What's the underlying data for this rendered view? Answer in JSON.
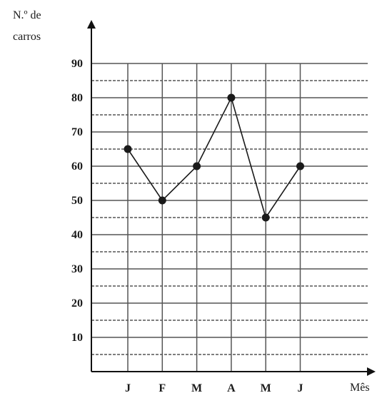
{
  "chart_data": {
    "type": "line",
    "ylabel_lines": [
      "N.º de",
      "carros"
    ],
    "xlabel": "Mês",
    "categories": [
      "J",
      "F",
      "M",
      "A",
      "M",
      "J"
    ],
    "values": [
      65,
      50,
      60,
      80,
      45,
      60
    ],
    "ylim": [
      0,
      90
    ],
    "y_ticks": [
      10,
      20,
      30,
      40,
      50,
      60,
      70,
      80,
      90
    ],
    "grid": {
      "solid_every": 10,
      "dashed_every": 5,
      "vertical_lines": true
    },
    "colors": {
      "line": "#1a1a1a",
      "grid_solid": "#555555",
      "grid_dashed": "#333333",
      "axis": "#111111"
    }
  }
}
